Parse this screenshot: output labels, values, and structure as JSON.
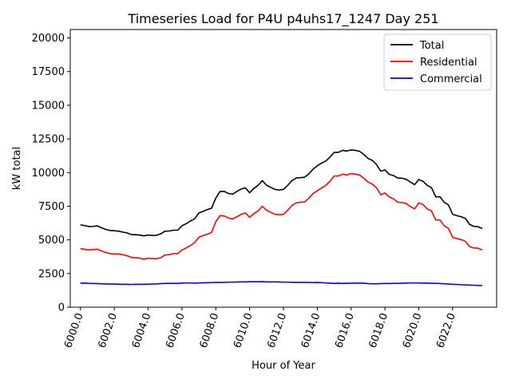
{
  "chart_data": {
    "type": "line",
    "title": "Timeseries Load for P4U p4uhs17_1247  Day 251",
    "xlabel": "Hour of Year",
    "ylabel": "kW total",
    "xlim": [
      5999.4,
      6024.6
    ],
    "ylim": [
      0,
      20625
    ],
    "x_ticks": [
      6000.0,
      6002.0,
      6004.0,
      6006.0,
      6008.0,
      6010.0,
      6012.0,
      6014.0,
      6016.0,
      6018.0,
      6020.0,
      6022.0
    ],
    "x_tick_labels": [
      "6000.0",
      "6002.0",
      "6004.0",
      "6006.0",
      "6008.0",
      "6010.0",
      "6012.0",
      "6014.0",
      "6016.0",
      "6018.0",
      "6020.0",
      "6022.0"
    ],
    "y_ticks": [
      0,
      2500,
      5000,
      7500,
      10000,
      12500,
      15000,
      17500,
      20000
    ],
    "y_tick_labels": [
      "0",
      "2500",
      "5000",
      "7500",
      "10000",
      "12500",
      "15000",
      "17500",
      "20000"
    ],
    "legend_position": "top-right",
    "x": [
      6000.0,
      6000.25,
      6000.5,
      6000.75,
      6001.0,
      6001.25,
      6001.5,
      6001.75,
      6002.0,
      6002.25,
      6002.5,
      6002.75,
      6003.0,
      6003.25,
      6003.5,
      6003.75,
      6004.0,
      6004.25,
      6004.5,
      6004.75,
      6005.0,
      6005.25,
      6005.5,
      6005.75,
      6006.0,
      6006.25,
      6006.5,
      6006.75,
      6007.0,
      6007.25,
      6007.5,
      6007.75,
      6008.0,
      6008.25,
      6008.5,
      6008.75,
      6009.0,
      6009.25,
      6009.5,
      6009.75,
      6010.0,
      6010.25,
      6010.5,
      6010.75,
      6011.0,
      6011.25,
      6011.5,
      6011.75,
      6012.0,
      6012.25,
      6012.5,
      6012.75,
      6013.0,
      6013.25,
      6013.5,
      6013.75,
      6014.0,
      6014.25,
      6014.5,
      6014.75,
      6015.0,
      6015.25,
      6015.5,
      6015.75,
      6016.0,
      6016.25,
      6016.5,
      6016.75,
      6017.0,
      6017.25,
      6017.5,
      6017.75,
      6018.0,
      6018.25,
      6018.5,
      6018.75,
      6019.0,
      6019.25,
      6019.5,
      6019.75,
      6020.0,
      6020.25,
      6020.5,
      6020.75,
      6021.0,
      6021.25,
      6021.5,
      6021.75,
      6022.0,
      6022.25,
      6022.5,
      6022.75,
      6023.0,
      6023.25,
      6023.5,
      6023.75
    ],
    "series": [
      {
        "name": "Total",
        "color": "#000000",
        "values": [
          6120,
          6060,
          5990,
          6000,
          6040,
          5900,
          5780,
          5700,
          5680,
          5650,
          5580,
          5520,
          5400,
          5380,
          5360,
          5300,
          5360,
          5330,
          5340,
          5450,
          5650,
          5660,
          5720,
          5720,
          6050,
          6200,
          6400,
          6560,
          7000,
          7120,
          7250,
          7350,
          8100,
          8600,
          8600,
          8450,
          8400,
          8600,
          8780,
          8870,
          8500,
          8820,
          9050,
          9400,
          9060,
          8900,
          8750,
          8700,
          8750,
          9050,
          9400,
          9600,
          9620,
          9650,
          9900,
          10250,
          10500,
          10700,
          10850,
          11150,
          11500,
          11500,
          11650,
          11600,
          11680,
          11650,
          11580,
          11350,
          11050,
          10900,
          10600,
          10100,
          10200,
          9870,
          9780,
          9600,
          9580,
          9500,
          9300,
          9100,
          9480,
          9350,
          9050,
          8880,
          8200,
          8200,
          7800,
          7600,
          6900,
          6800,
          6720,
          6600,
          6150,
          6000,
          5980,
          5840
        ]
      },
      {
        "name": "Residential",
        "color": "#ff0000",
        "values": [
          4350,
          4300,
          4250,
          4280,
          4310,
          4180,
          4070,
          3980,
          3960,
          3950,
          3900,
          3830,
          3700,
          3680,
          3650,
          3560,
          3640,
          3620,
          3600,
          3680,
          3880,
          3900,
          3980,
          3980,
          4250,
          4400,
          4580,
          4800,
          5200,
          5320,
          5420,
          5550,
          6350,
          6800,
          6780,
          6620,
          6560,
          6720,
          6900,
          7000,
          6680,
          6950,
          7150,
          7500,
          7200,
          7050,
          6900,
          6870,
          6900,
          7200,
          7550,
          7750,
          7800,
          7810,
          8100,
          8450,
          8650,
          8850,
          9050,
          9350,
          9750,
          9750,
          9880,
          9820,
          9930,
          9880,
          9820,
          9580,
          9300,
          9150,
          8870,
          8350,
          8480,
          8200,
          8050,
          7800,
          7780,
          7700,
          7480,
          7300,
          7750,
          7620,
          7300,
          7150,
          6480,
          6480,
          6050,
          5850,
          5200,
          5100,
          5020,
          4900,
          4500,
          4400,
          4380,
          4250
        ]
      },
      {
        "name": "Commercial",
        "color": "#0000ff",
        "values": [
          1780,
          1790,
          1770,
          1760,
          1750,
          1740,
          1730,
          1720,
          1720,
          1710,
          1700,
          1700,
          1690,
          1700,
          1700,
          1700,
          1710,
          1720,
          1730,
          1750,
          1770,
          1770,
          1770,
          1770,
          1790,
          1800,
          1800,
          1790,
          1800,
          1810,
          1820,
          1830,
          1840,
          1840,
          1850,
          1860,
          1860,
          1870,
          1880,
          1880,
          1890,
          1890,
          1890,
          1900,
          1880,
          1880,
          1880,
          1870,
          1860,
          1860,
          1850,
          1850,
          1840,
          1840,
          1840,
          1830,
          1840,
          1830,
          1800,
          1790,
          1770,
          1780,
          1770,
          1780,
          1780,
          1790,
          1790,
          1780,
          1750,
          1740,
          1740,
          1750,
          1760,
          1760,
          1770,
          1770,
          1780,
          1790,
          1800,
          1800,
          1800,
          1790,
          1790,
          1780,
          1770,
          1760,
          1740,
          1720,
          1700,
          1690,
          1670,
          1660,
          1640,
          1630,
          1620,
          1610
        ]
      }
    ]
  }
}
